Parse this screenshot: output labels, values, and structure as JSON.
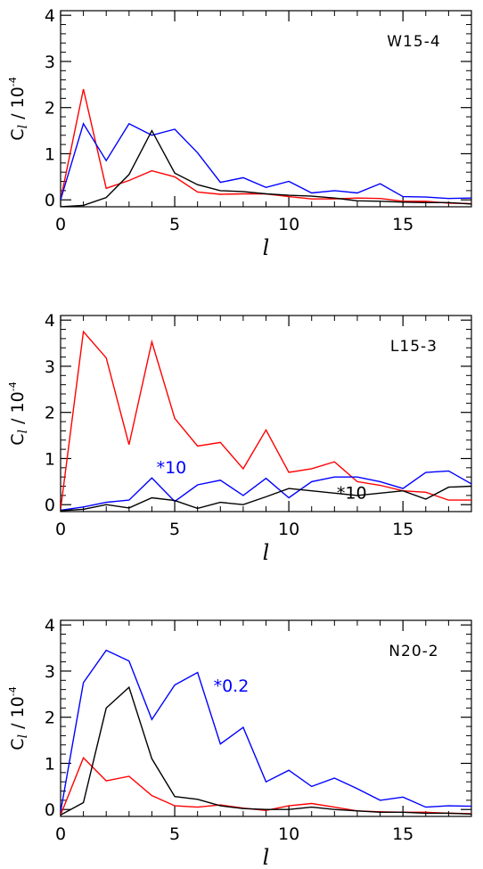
{
  "chart_data": [
    {
      "type": "line",
      "panel_label": "W15-4",
      "xlabel": "l",
      "ylabel": "C_l / 10^-4",
      "ylabel_main": "C",
      "ylabel_sub": "l",
      "ylabel_div": "/ 10",
      "ylabel_exp": "-4",
      "xlim": [
        0,
        18
      ],
      "ylim": [
        -0.15,
        4.1
      ],
      "xticks": [
        0,
        5,
        10,
        15
      ],
      "yticks": [
        0,
        1,
        2,
        3,
        4
      ],
      "x": [
        0,
        1,
        2,
        3,
        4,
        5,
        6,
        7,
        8,
        9,
        10,
        11,
        12,
        13,
        14,
        15,
        16,
        17,
        18
      ],
      "series": [
        {
          "color": "#ff0000",
          "values": [
            0.0,
            2.4,
            0.25,
            0.42,
            0.63,
            0.5,
            0.17,
            0.12,
            0.13,
            0.13,
            0.07,
            0.02,
            0.02,
            0.04,
            0.03,
            -0.03,
            -0.03,
            -0.07,
            -0.08
          ]
        },
        {
          "color": "#0000ff",
          "values": [
            0.0,
            1.65,
            0.85,
            1.65,
            1.4,
            1.53,
            1.02,
            0.38,
            0.48,
            0.27,
            0.4,
            0.15,
            0.2,
            0.15,
            0.35,
            0.07,
            0.06,
            0.03,
            0.04
          ]
        },
        {
          "color": "#000000",
          "values": [
            -0.15,
            -0.12,
            0.05,
            0.55,
            1.5,
            0.58,
            0.33,
            0.2,
            0.18,
            0.13,
            0.1,
            0.08,
            0.04,
            -0.02,
            -0.03,
            -0.05,
            -0.06,
            -0.06,
            -0.09
          ]
        }
      ],
      "annotations": []
    },
    {
      "type": "line",
      "panel_label": "L15-3",
      "xlabel": "l",
      "ylabel": "C_l / 10^-4",
      "ylabel_main": "C",
      "ylabel_sub": "l",
      "ylabel_div": "/ 10",
      "ylabel_exp": "-4",
      "xlim": [
        0,
        18
      ],
      "ylim": [
        -0.15,
        4.1
      ],
      "xticks": [
        0,
        5,
        10,
        15
      ],
      "yticks": [
        0,
        1,
        2,
        3,
        4
      ],
      "x": [
        0,
        1,
        2,
        3,
        4,
        5,
        6,
        7,
        8,
        9,
        10,
        11,
        12,
        13,
        14,
        15,
        16,
        17,
        18
      ],
      "series": [
        {
          "color": "#ff0000",
          "values": [
            -0.1,
            3.75,
            3.18,
            1.3,
            3.53,
            1.87,
            1.27,
            1.35,
            0.78,
            1.62,
            0.7,
            0.78,
            0.93,
            0.5,
            0.42,
            0.3,
            0.27,
            0.1,
            0.1
          ]
        },
        {
          "color": "#0000ff",
          "values": [
            -0.12,
            -0.05,
            0.05,
            0.1,
            0.58,
            0.07,
            0.43,
            0.53,
            0.2,
            0.57,
            0.15,
            0.5,
            0.6,
            0.6,
            0.5,
            0.35,
            0.7,
            0.73,
            0.45
          ]
        },
        {
          "color": "#000000",
          "values": [
            -0.13,
            -0.1,
            0.0,
            -0.07,
            0.15,
            0.09,
            -0.08,
            0.05,
            0.0,
            0.17,
            0.35,
            0.3,
            0.25,
            0.2,
            0.25,
            0.3,
            0.12,
            0.38,
            0.4
          ]
        }
      ],
      "annotations": [
        {
          "text": "*10",
          "x": 4.2,
          "y": 0.68,
          "color": "#0000ff"
        },
        {
          "text": "*10",
          "x": 12.1,
          "y": 0.13,
          "color": "#000000"
        }
      ]
    },
    {
      "type": "line",
      "panel_label": "N20-2",
      "xlabel": "l",
      "ylabel": "C_l / 10^-4",
      "ylabel_main": "C",
      "ylabel_sub": "l",
      "ylabel_div": "/ 10",
      "ylabel_exp": "-4",
      "xlim": [
        0,
        18
      ],
      "ylim": [
        -0.15,
        4.1
      ],
      "xticks": [
        0,
        5,
        10,
        15
      ],
      "yticks": [
        0,
        1,
        2,
        3,
        4
      ],
      "x": [
        0,
        1,
        2,
        3,
        4,
        5,
        6,
        7,
        8,
        9,
        10,
        11,
        12,
        13,
        14,
        15,
        16,
        17,
        18
      ],
      "series": [
        {
          "color": "#ff0000",
          "values": [
            -0.12,
            1.12,
            0.62,
            0.72,
            0.3,
            0.08,
            0.05,
            0.1,
            0.03,
            -0.02,
            0.08,
            0.13,
            0.05,
            -0.03,
            -0.05,
            -0.06,
            -0.06,
            -0.08,
            -0.09
          ]
        },
        {
          "color": "#0000ff",
          "values": [
            -0.05,
            2.75,
            3.45,
            3.22,
            1.95,
            2.7,
            2.97,
            1.42,
            1.78,
            0.6,
            0.85,
            0.5,
            0.68,
            0.45,
            0.2,
            0.27,
            0.05,
            0.08,
            0.07
          ]
        },
        {
          "color": "#000000",
          "values": [
            -0.12,
            0.15,
            2.2,
            2.65,
            1.1,
            0.28,
            0.22,
            0.08,
            0.02,
            0.0,
            0.0,
            0.05,
            0.0,
            -0.03,
            -0.06,
            -0.06,
            -0.08,
            -0.08,
            -0.1
          ]
        }
      ],
      "annotations": [
        {
          "text": "*0.2",
          "x": 6.7,
          "y": 2.55,
          "color": "#0000ff"
        }
      ]
    }
  ]
}
